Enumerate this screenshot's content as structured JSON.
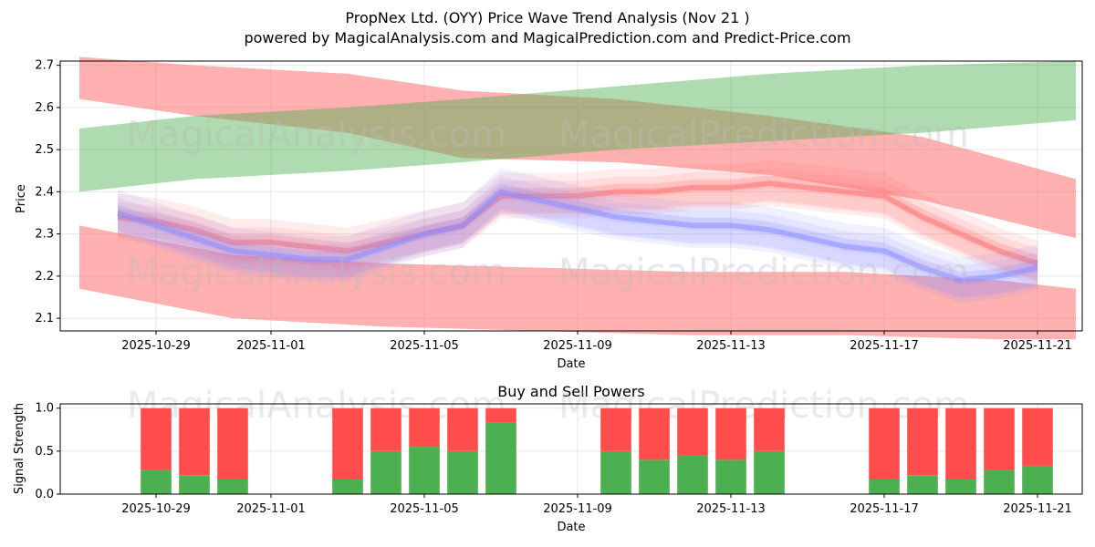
{
  "header": {
    "title": "PropNex Ltd. (OYY) Price Wave Trend Analysis (Nov 21 )",
    "subtitle": "powered by MagicalAnalysis.com and MagicalPrediction.com and Predict-Price.com"
  },
  "watermarks": [
    "MagicalAnalysis.com",
    "MagicalPrediction.com"
  ],
  "colors": {
    "band_red": "#ff6f6f",
    "band_green": "#4caf50",
    "band_blue": "#8c8cff",
    "buy": "#4caf50",
    "sell": "#ff4d4d"
  },
  "chart_data": [
    {
      "type": "area",
      "title": "",
      "xlabel": "Date",
      "ylabel": "Price",
      "ylim": [
        2.07,
        2.71
      ],
      "xlim": [
        "2025-10-26T12:00",
        "2025-11-22T04:00"
      ],
      "yticks": [
        2.1,
        2.2,
        2.3,
        2.4,
        2.5,
        2.6,
        2.7
      ],
      "xticks": [
        "2025-10-29",
        "2025-11-01",
        "2025-11-05",
        "2025-11-09",
        "2025-11-13",
        "2025-11-17",
        "2025-11-21"
      ],
      "grid": true,
      "series": [
        {
          "name": "upper-red-band",
          "color": "red",
          "dates": [
            "2025-10-27",
            "2025-10-30",
            "2025-11-03",
            "2025-11-06",
            "2025-11-10",
            "2025-11-14",
            "2025-11-18",
            "2025-11-22"
          ],
          "upper": [
            2.72,
            2.7,
            2.68,
            2.64,
            2.62,
            2.58,
            2.53,
            2.43
          ],
          "lower": [
            2.62,
            2.58,
            2.54,
            2.48,
            2.47,
            2.44,
            2.38,
            2.29
          ]
        },
        {
          "name": "green-band",
          "color": "green",
          "dates": [
            "2025-10-27",
            "2025-10-30",
            "2025-11-03",
            "2025-11-06",
            "2025-11-10",
            "2025-11-14",
            "2025-11-18",
            "2025-11-22"
          ],
          "upper": [
            2.55,
            2.58,
            2.6,
            2.62,
            2.65,
            2.68,
            2.7,
            2.71
          ],
          "lower": [
            2.4,
            2.43,
            2.45,
            2.47,
            2.5,
            2.52,
            2.54,
            2.57
          ]
        },
        {
          "name": "lower-red-band",
          "color": "red",
          "dates": [
            "2025-10-27",
            "2025-10-31",
            "2025-11-04",
            "2025-11-08",
            "2025-11-12",
            "2025-11-16",
            "2025-11-20",
            "2025-11-22"
          ],
          "upper": [
            2.32,
            2.25,
            2.23,
            2.22,
            2.21,
            2.21,
            2.19,
            2.17
          ],
          "lower": [
            2.17,
            2.1,
            2.08,
            2.07,
            2.06,
            2.06,
            2.05,
            2.05
          ]
        },
        {
          "name": "red-wave-bundle",
          "color": "red",
          "dates": [
            "2025-10-28",
            "2025-10-29",
            "2025-10-30",
            "2025-10-31",
            "2025-11-01",
            "2025-11-02",
            "2025-11-03",
            "2025-11-04",
            "2025-11-05",
            "2025-11-06",
            "2025-11-07",
            "2025-11-08",
            "2025-11-09",
            "2025-11-10",
            "2025-11-11",
            "2025-11-12",
            "2025-11-13",
            "2025-11-14",
            "2025-11-15",
            "2025-11-16",
            "2025-11-17",
            "2025-11-18",
            "2025-11-19",
            "2025-11-20",
            "2025-11-21"
          ],
          "values": [
            2.34,
            2.33,
            2.31,
            2.28,
            2.28,
            2.27,
            2.26,
            2.28,
            2.3,
            2.32,
            2.39,
            2.39,
            2.39,
            2.4,
            2.4,
            2.41,
            2.41,
            2.42,
            2.41,
            2.4,
            2.39,
            2.34,
            2.3,
            2.26,
            2.23
          ]
        },
        {
          "name": "blue-wave-bundle",
          "color": "blue",
          "dates": [
            "2025-10-28",
            "2025-10-29",
            "2025-10-30",
            "2025-10-31",
            "2025-11-01",
            "2025-11-02",
            "2025-11-03",
            "2025-11-04",
            "2025-11-05",
            "2025-11-06",
            "2025-11-07",
            "2025-11-08",
            "2025-11-09",
            "2025-11-10",
            "2025-11-11",
            "2025-11-12",
            "2025-11-13",
            "2025-11-14",
            "2025-11-15",
            "2025-11-16",
            "2025-11-17",
            "2025-11-18",
            "2025-11-19",
            "2025-11-20",
            "2025-11-21"
          ],
          "values": [
            2.35,
            2.32,
            2.29,
            2.26,
            2.25,
            2.24,
            2.24,
            2.27,
            2.3,
            2.32,
            2.4,
            2.38,
            2.36,
            2.34,
            2.33,
            2.32,
            2.32,
            2.31,
            2.29,
            2.27,
            2.26,
            2.22,
            2.19,
            2.2,
            2.22
          ]
        }
      ]
    },
    {
      "type": "bar",
      "title": "Buy and Sell Powers",
      "xlabel": "Date",
      "ylabel": "Signal Strength",
      "ylim": [
        0,
        1.05
      ],
      "yticks": [
        0.0,
        0.5,
        1.0
      ],
      "xlim": [
        "2025-10-26T12:00",
        "2025-11-22T04:00"
      ],
      "xticks": [
        "2025-10-29",
        "2025-11-01",
        "2025-11-05",
        "2025-11-09",
        "2025-11-13",
        "2025-11-17",
        "2025-11-21"
      ],
      "categories": [
        "2025-10-29",
        "2025-10-30",
        "2025-10-31",
        "2025-11-03",
        "2025-11-04",
        "2025-11-05",
        "2025-11-06",
        "2025-11-07",
        "2025-11-10",
        "2025-11-11",
        "2025-11-12",
        "2025-11-13",
        "2025-11-14",
        "2025-11-17",
        "2025-11-18",
        "2025-11-19",
        "2025-11-20",
        "2025-11-21"
      ],
      "series": [
        {
          "name": "Buy",
          "values": [
            0.28,
            0.22,
            0.17,
            0.17,
            0.5,
            0.55,
            0.5,
            0.83,
            0.5,
            0.4,
            0.45,
            0.4,
            0.5,
            0.17,
            0.22,
            0.17,
            0.28,
            0.33
          ]
        },
        {
          "name": "Sell",
          "values": [
            0.72,
            0.78,
            0.83,
            0.83,
            0.5,
            0.45,
            0.5,
            0.17,
            0.5,
            0.6,
            0.55,
            0.6,
            0.5,
            0.83,
            0.78,
            0.83,
            0.72,
            0.67
          ]
        }
      ]
    }
  ]
}
